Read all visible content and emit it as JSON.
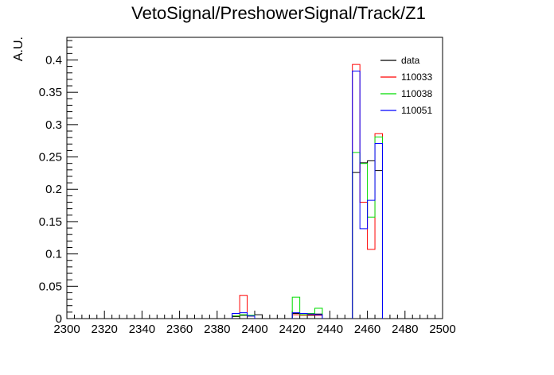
{
  "chart_data": {
    "type": "histogram",
    "title": "VetoSignal/PreshowerSignal/Track/Z1",
    "xlabel": "",
    "ylabel": "A.U.",
    "xlim": [
      2300,
      2500
    ],
    "ylim": [
      0,
      0.435
    ],
    "bin_width": 4,
    "x_ticks": [
      2300,
      2320,
      2340,
      2360,
      2380,
      2400,
      2420,
      2440,
      2460,
      2480,
      2500
    ],
    "y_ticks": [
      0,
      0.05,
      0.1,
      0.15,
      0.2,
      0.25,
      0.3,
      0.35,
      0.4
    ],
    "y_tick_labels": [
      "0",
      "0.05",
      "0.1",
      "0.15",
      "0.2",
      "0.25",
      "0.3",
      "0.35",
      "0.4"
    ],
    "legend_position": "top-right",
    "series": [
      {
        "name": "data",
        "color": "#000000",
        "bins": [
          {
            "x": 2388,
            "y": 0.003
          },
          {
            "x": 2392,
            "y": 0.005
          },
          {
            "x": 2396,
            "y": 0.004
          },
          {
            "x": 2400,
            "y": 0.006
          },
          {
            "x": 2420,
            "y": 0.008
          },
          {
            "x": 2424,
            "y": 0.006
          },
          {
            "x": 2428,
            "y": 0.005
          },
          {
            "x": 2432,
            "y": 0.007
          },
          {
            "x": 2452,
            "y": 0.226
          },
          {
            "x": 2456,
            "y": 0.241
          },
          {
            "x": 2460,
            "y": 0.244
          },
          {
            "x": 2464,
            "y": 0.229
          }
        ]
      },
      {
        "name": "110033",
        "color": "#ff0000",
        "bins": [
          {
            "x": 2388,
            "y": 0.004
          },
          {
            "x": 2392,
            "y": 0.036
          },
          {
            "x": 2396,
            "y": 0.004
          },
          {
            "x": 2420,
            "y": 0.006
          },
          {
            "x": 2424,
            "y": 0.005
          },
          {
            "x": 2428,
            "y": 0.006
          },
          {
            "x": 2432,
            "y": 0.005
          },
          {
            "x": 2452,
            "y": 0.393
          },
          {
            "x": 2456,
            "y": 0.18
          },
          {
            "x": 2460,
            "y": 0.107
          },
          {
            "x": 2464,
            "y": 0.286
          }
        ]
      },
      {
        "name": "110038",
        "color": "#00dd00",
        "bins": [
          {
            "x": 2388,
            "y": 0.004
          },
          {
            "x": 2392,
            "y": 0.006
          },
          {
            "x": 2396,
            "y": 0.005
          },
          {
            "x": 2420,
            "y": 0.033
          },
          {
            "x": 2424,
            "y": 0.006
          },
          {
            "x": 2428,
            "y": 0.008
          },
          {
            "x": 2432,
            "y": 0.016
          },
          {
            "x": 2452,
            "y": 0.257
          },
          {
            "x": 2456,
            "y": 0.24
          },
          {
            "x": 2460,
            "y": 0.157
          },
          {
            "x": 2464,
            "y": 0.281
          }
        ]
      },
      {
        "name": "110051",
        "color": "#0000ff",
        "bins": [
          {
            "x": 2388,
            "y": 0.008
          },
          {
            "x": 2392,
            "y": 0.009
          },
          {
            "x": 2396,
            "y": 0.004
          },
          {
            "x": 2420,
            "y": 0.009
          },
          {
            "x": 2424,
            "y": 0.008
          },
          {
            "x": 2428,
            "y": 0.007
          },
          {
            "x": 2432,
            "y": 0.006
          },
          {
            "x": 2452,
            "y": 0.383
          },
          {
            "x": 2456,
            "y": 0.139
          },
          {
            "x": 2460,
            "y": 0.183
          },
          {
            "x": 2464,
            "y": 0.271
          }
        ]
      }
    ]
  }
}
